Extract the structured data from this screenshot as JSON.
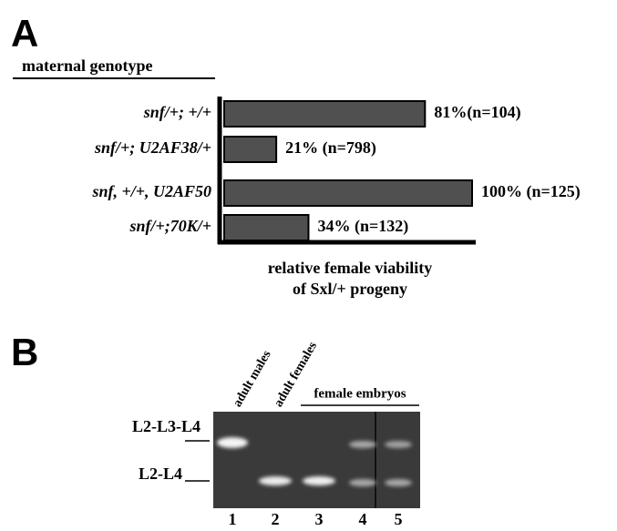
{
  "panel_a": {
    "letter": "A"
  },
  "chart_data": {
    "type": "bar",
    "orientation": "horizontal",
    "category_axis_title": "maternal genotype",
    "value_axis_title": [
      "relative female viability",
      "of Sxl/+ progeny"
    ],
    "categories": [
      "snf/+; +/+",
      "snf/+; U2AF38/+",
      "snf, +/+, U2AF50",
      "snf/+;70K/+"
    ],
    "values": [
      81,
      21,
      100,
      34
    ],
    "value_labels": [
      "81%(n=104)",
      "21% (n=798)",
      "100% (n=125)",
      "34% (n=132)"
    ],
    "color": "#505050"
  },
  "panel_b": {
    "letter": "B",
    "lane_headers": [
      "adult males",
      "adult females"
    ],
    "group_header": "female embryos",
    "band_labels": [
      "L2-L3-L4",
      "L2-L4"
    ],
    "lane_numbers": [
      "1",
      "2",
      "3",
      "4",
      "5"
    ]
  }
}
